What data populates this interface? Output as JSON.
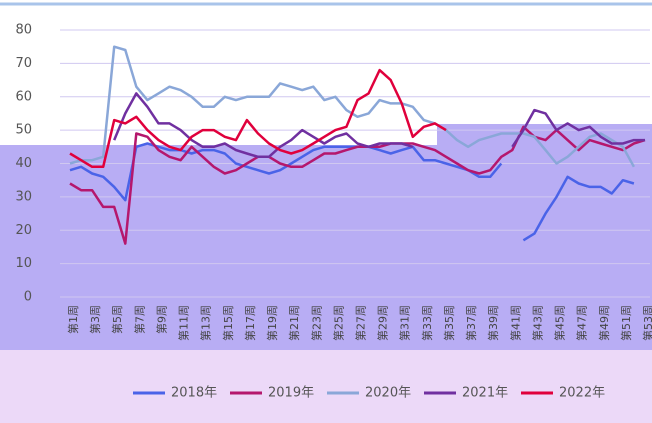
{
  "chart_data": {
    "type": "line",
    "categories": [
      "第1周",
      null,
      "第3周",
      null,
      "第5周",
      null,
      "第7周",
      null,
      "第9周",
      null,
      "第11周",
      null,
      "第13周",
      null,
      "第15周",
      null,
      "第17周",
      null,
      "第19周",
      null,
      "第21周",
      null,
      "第23周",
      null,
      "第25周",
      null,
      "第27周",
      null,
      "第29周",
      null,
      "第31周",
      null,
      "第33周",
      null,
      "第35周",
      null,
      "第37周",
      null,
      "第39周",
      null,
      "第41周",
      null,
      "第43周",
      null,
      "第45周",
      null,
      "第47周",
      null,
      "第49周",
      null,
      "第51周",
      null,
      "第53周"
    ],
    "ylim": [
      0,
      80
    ],
    "yticks": [
      0,
      10,
      20,
      30,
      40,
      50,
      60,
      70,
      80
    ],
    "grid": true,
    "legend": "bottom",
    "series": [
      {
        "name": "2018年",
        "color": "#4a63e8",
        "values": [
          38,
          39,
          37,
          36,
          33,
          29,
          45,
          46,
          45,
          44,
          44,
          43,
          44,
          44,
          43,
          40,
          39,
          38,
          37,
          38,
          40,
          42,
          44,
          45,
          45,
          45,
          45,
          45,
          44,
          43,
          44,
          45,
          41,
          41,
          40,
          39,
          38,
          36,
          36,
          40,
          null,
          17,
          19,
          25,
          30,
          36,
          34,
          33,
          33,
          31,
          35,
          34,
          null
        ]
      },
      {
        "name": "2019年",
        "color": "#b5176d",
        "values": [
          34,
          32,
          32,
          27,
          27,
          16,
          49,
          48,
          44,
          42,
          41,
          45,
          42,
          39,
          37,
          38,
          40,
          42,
          42,
          40,
          39,
          39,
          41,
          43,
          43,
          44,
          45,
          45,
          45,
          46,
          46,
          46,
          45,
          44,
          42,
          40,
          38,
          37,
          38,
          42,
          44,
          51,
          48,
          47,
          50,
          47,
          44,
          47,
          46,
          45,
          44,
          46,
          47
        ]
      },
      {
        "name": "2020年",
        "color": "#8aa7d8",
        "values": [
          40,
          41,
          41,
          42,
          75,
          74,
          63,
          59,
          61,
          63,
          62,
          60,
          57,
          57,
          60,
          59,
          60,
          60,
          60,
          64,
          63,
          62,
          63,
          59,
          60,
          56,
          54,
          55,
          59,
          58,
          58,
          57,
          53,
          52,
          50,
          47,
          45,
          47,
          48,
          49,
          49,
          49,
          48,
          44,
          40,
          42,
          45,
          48,
          49,
          47,
          45,
          39,
          null
        ]
      },
      {
        "name": "2021年",
        "color": "#7030a0",
        "values": [
          null,
          null,
          null,
          null,
          47,
          55,
          61,
          57,
          52,
          52,
          50,
          47,
          45,
          45,
          46,
          44,
          43,
          42,
          42,
          45,
          47,
          50,
          48,
          46,
          48,
          49,
          46,
          45,
          46,
          46,
          46,
          45,
          null,
          null,
          null,
          null,
          null,
          null,
          null,
          null,
          45,
          50,
          56,
          55,
          50,
          52,
          50,
          51,
          48,
          46,
          46,
          47,
          47
        ]
      },
      {
        "name": "2022年",
        "color": "#e0003c",
        "values": [
          43,
          41,
          39,
          39,
          53,
          52,
          54,
          50,
          47,
          45,
          44,
          48,
          50,
          50,
          48,
          47,
          53,
          49,
          46,
          44,
          43,
          44,
          46,
          48,
          50,
          51,
          59,
          61,
          68,
          65,
          58,
          48,
          51,
          52,
          50,
          null,
          null,
          null,
          null,
          null,
          null,
          null,
          null,
          null,
          null,
          null,
          null,
          null,
          null,
          null,
          null,
          null,
          null
        ]
      }
    ]
  }
}
